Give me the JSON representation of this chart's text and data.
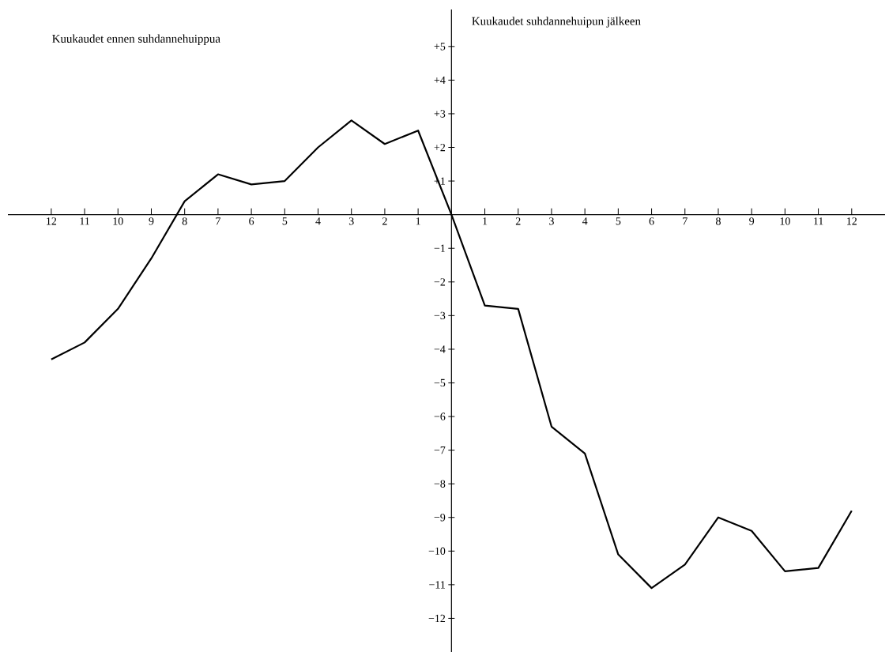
{
  "chart_data": {
    "type": "line",
    "x": [
      -12,
      -11,
      -10,
      -9,
      -8,
      -7,
      -6,
      -5,
      -4,
      -3,
      -2,
      -1,
      0,
      1,
      2,
      3,
      4,
      5,
      6,
      7,
      8,
      9,
      10,
      11,
      12
    ],
    "series": [
      {
        "color": "#000000",
        "values": [
          -4.3,
          -3.8,
          -2.8,
          -1.3,
          0.4,
          1.2,
          0.9,
          1.0,
          2.0,
          2.8,
          2.1,
          2.5,
          0,
          -2.7,
          -2.8,
          -6.3,
          -7.1,
          -10.1,
          -11.1,
          -10.4,
          -9.0,
          -9.4,
          -10.6,
          -10.5,
          -8.8
        ]
      }
    ],
    "xlim": [
      -13.3,
      13
    ],
    "ylim": [
      -13,
      6.1
    ],
    "xticks": [
      {
        "value": -12,
        "label": "12"
      },
      {
        "value": -11,
        "label": "11"
      },
      {
        "value": -10,
        "label": "10"
      },
      {
        "value": -9,
        "label": "9"
      },
      {
        "value": -8,
        "label": "8"
      },
      {
        "value": -7,
        "label": "7"
      },
      {
        "value": -6,
        "label": "6"
      },
      {
        "value": -5,
        "label": "5"
      },
      {
        "value": -4,
        "label": "4"
      },
      {
        "value": -3,
        "label": "3"
      },
      {
        "value": -2,
        "label": "2"
      },
      {
        "value": -1,
        "label": "1"
      },
      1,
      2,
      3,
      4,
      5,
      6,
      7,
      8,
      9,
      10,
      11,
      12
    ],
    "yticks": [
      {
        "value": 5,
        "label": "+5"
      },
      {
        "value": 4,
        "label": "+4"
      },
      {
        "value": 3,
        "label": "+3"
      },
      {
        "value": 2,
        "label": "+2"
      },
      {
        "value": 1,
        "label": "+1"
      },
      {
        "value": -1,
        "label": "−1"
      },
      {
        "value": -2,
        "label": "−2"
      },
      {
        "value": -3,
        "label": "−3"
      },
      {
        "value": -4,
        "label": "−4"
      },
      {
        "value": -5,
        "label": "−5"
      },
      {
        "value": -6,
        "label": "−6"
      },
      {
        "value": -7,
        "label": "−7"
      },
      {
        "value": -8,
        "label": "−8"
      },
      {
        "value": -9,
        "label": "−9"
      },
      {
        "value": -10,
        "label": "−10"
      },
      {
        "value": -11,
        "label": "−11"
      },
      {
        "value": -12,
        "label": "−12"
      }
    ],
    "annotations": [
      "Kuukaudet ennen suhdannehuippua",
      "Kuukaudet suhdannehuipun jälkeen"
    ]
  }
}
